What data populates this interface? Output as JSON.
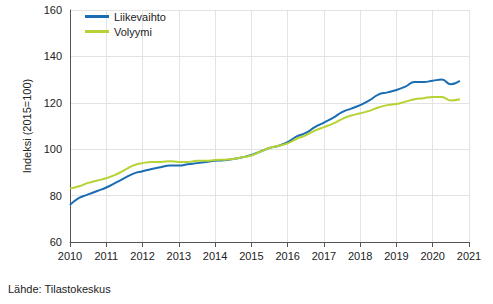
{
  "chart_data": {
    "type": "line",
    "y_label": "Indeksi (2015=100)",
    "source": "Lähde: Tilastokeskus",
    "x": [
      2010,
      2010.25,
      2010.5,
      2010.75,
      2011,
      2011.25,
      2011.5,
      2011.75,
      2012,
      2012.25,
      2012.5,
      2012.75,
      2013,
      2013.25,
      2013.5,
      2013.75,
      2014,
      2014.25,
      2014.5,
      2014.75,
      2015,
      2015.25,
      2015.5,
      2015.75,
      2016,
      2016.25,
      2016.5,
      2016.75,
      2017,
      2017.25,
      2017.5,
      2017.75,
      2018,
      2018.25,
      2018.5,
      2018.75,
      2019,
      2019.25,
      2019.5,
      2019.75,
      2020,
      2020.25,
      2020.5,
      2020.75
    ],
    "series": [
      {
        "name": "Liikevaihto",
        "color": "#1a6db2",
        "values": [
          76,
          79,
          80.5,
          82,
          83.5,
          85.5,
          87.5,
          89.5,
          90.5,
          91.5,
          92.2,
          93,
          93,
          93.5,
          94,
          94.5,
          95,
          95.2,
          95.8,
          96.5,
          97.5,
          99,
          100.5,
          101.5,
          103,
          105.5,
          107,
          109.5,
          111.5,
          113.5,
          116,
          117.5,
          119,
          121,
          123.5,
          124.5,
          125.5,
          127,
          129,
          129,
          129.5,
          130,
          128,
          129.5
        ]
      },
      {
        "name": "Volyymi",
        "color": "#b5d334",
        "values": [
          83,
          84,
          85.5,
          86.5,
          87.5,
          89,
          91,
          93,
          94,
          94.5,
          94.5,
          94.8,
          94.5,
          94.5,
          95,
          95,
          95.3,
          95.5,
          95.8,
          96.5,
          97.3,
          99,
          100.5,
          101.5,
          102.5,
          104.5,
          106,
          108,
          109.5,
          111,
          113,
          114.5,
          115.5,
          116.5,
          118,
          119,
          119.5,
          120.5,
          121.5,
          122,
          122.5,
          122.5,
          121,
          121.5
        ]
      }
    ],
    "xlim": [
      2010,
      2021
    ],
    "xticks": [
      2010,
      2011,
      2012,
      2013,
      2014,
      2015,
      2016,
      2017,
      2018,
      2019,
      2020,
      2021
    ],
    "ylim": [
      60,
      160
    ],
    "yticks": [
      60,
      80,
      100,
      120,
      140,
      160
    ],
    "grid": true,
    "legend": "top-left"
  }
}
